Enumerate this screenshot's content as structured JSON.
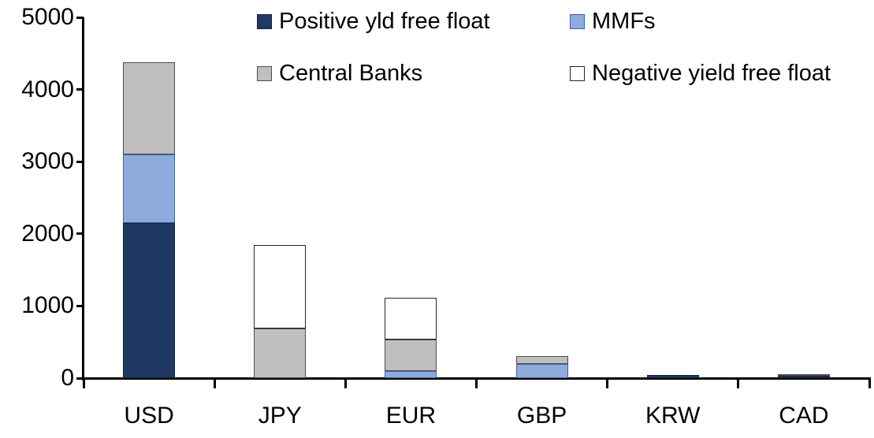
{
  "chart_data": {
    "type": "bar",
    "stacked": true,
    "title": "",
    "xlabel": "",
    "ylabel": "",
    "categories": [
      "USD",
      "JPY",
      "EUR",
      "GBP",
      "KRW",
      "CAD"
    ],
    "series": [
      {
        "name": "Positive yld free float",
        "color": "#1F3864",
        "border": "#17233E",
        "values": [
          2150,
          0,
          0,
          0,
          40,
          30
        ]
      },
      {
        "name": "MMFs",
        "color": "#8FAADC",
        "border": "#41659C",
        "values": [
          950,
          0,
          100,
          200,
          0,
          0
        ]
      },
      {
        "name": "Central Banks",
        "color": "#BFBFBF",
        "border": "#4D4D4D",
        "values": [
          1280,
          690,
          430,
          110,
          0,
          30
        ]
      },
      {
        "name": "Negative yield free float",
        "color": "#FFFFFF",
        "border": "#262626",
        "values": [
          0,
          1150,
          580,
          0,
          0,
          0
        ]
      }
    ],
    "totals": [
      4380,
      1840,
      1110,
      310,
      40,
      60
    ],
    "ylim": [
      0,
      5000
    ],
    "ytick_step": 1000,
    "yticks": [
      0,
      1000,
      2000,
      3000,
      4000,
      5000
    ],
    "ytick_labels": [
      "0",
      "1000",
      "2000",
      "3000",
      "4000",
      "5000"
    ],
    "grid": false,
    "legend_position": "top-center",
    "axis_color": "#000000"
  }
}
